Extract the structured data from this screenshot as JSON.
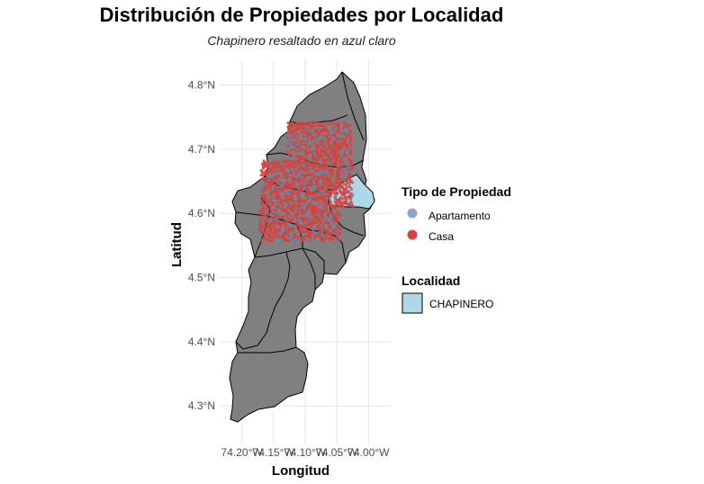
{
  "title": "Distribución de Propiedades por Localidad",
  "subtitle": "Chapinero resaltado en azul claro",
  "axes": {
    "xlabel": "Longitud",
    "ylabel": "Latitud",
    "x_ticks": [
      "74.20°W",
      "74.15°W",
      "74.10°W",
      "74.05°W",
      "74.00°W"
    ],
    "x_tick_values": [
      -74.2,
      -74.15,
      -74.1,
      -74.05,
      -74.0
    ],
    "y_ticks": [
      "4.3°N",
      "4.4°N",
      "4.5°N",
      "4.6°N",
      "4.7°N",
      "4.8°N"
    ],
    "y_tick_values": [
      4.3,
      4.4,
      4.5,
      4.6,
      4.7,
      4.8
    ],
    "xlim": [
      -74.235,
      -73.965
    ],
    "ylim": [
      4.24,
      4.84
    ]
  },
  "legend_tipo": {
    "title": "Tipo de Propiedad",
    "items": [
      {
        "label": "Apartamento",
        "color": "#8aa9c9"
      },
      {
        "label": "Casa",
        "color": "#d9413b"
      }
    ]
  },
  "legend_localidad": {
    "title": "Localidad",
    "items": [
      {
        "label": "CHAPINERO",
        "color": "#add8e6"
      }
    ]
  },
  "colors": {
    "land": "#808080",
    "highlight": "#add8e6",
    "grid": "#e6e6e6",
    "casa": "#d9413b",
    "apartamento": "#5a8dc0"
  },
  "chart_data": {
    "type": "scatter",
    "title": "Distribución de Propiedades por Localidad",
    "subtitle": "Chapinero resaltado en azul claro",
    "xlabel": "Longitud",
    "ylabel": "Latitud",
    "xlim": [
      -74.235,
      -73.965
    ],
    "ylim": [
      4.24,
      4.84
    ],
    "grid": true,
    "legend_position": "right",
    "series": [
      {
        "name": "Apartamento",
        "color": "#8aa9c9",
        "extent_lon": [
          -74.18,
          -74.03
        ],
        "extent_lat": [
          4.56,
          4.76
        ]
      },
      {
        "name": "Casa",
        "color": "#d9413b",
        "extent_lon": [
          -74.18,
          -74.03
        ],
        "extent_lat": [
          4.56,
          4.76
        ]
      }
    ],
    "highlighted_region": "CHAPINERO"
  }
}
